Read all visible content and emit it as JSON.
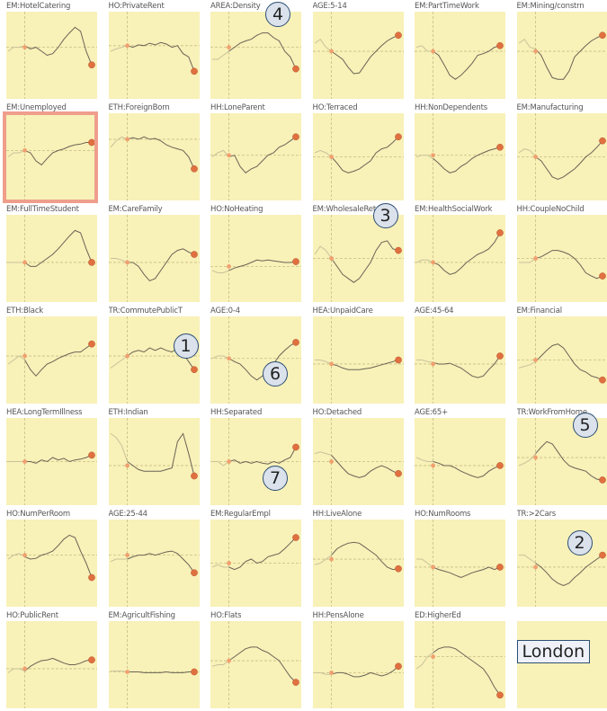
{
  "colors": {
    "plot_bg": "#f8f1b8",
    "line": "#6b6355",
    "faded_line": "#c9c29a",
    "marker": "#e07040",
    "guide": "#c7bd84",
    "highlight": "#ef9e8c",
    "badge_border": "#2d4e73"
  },
  "empty_cell_label": "London",
  "chart_data": {
    "type": "line",
    "layout": "small-multiples",
    "xlabel": "",
    "ylabel": "",
    "grid": "dashed crosshair at marked point",
    "highlighted_panel": "EM:Unemployed",
    "annotations": [
      {
        "panel": "TR:CommutePublicT",
        "label": "1"
      },
      {
        "panel": "TR:>2Cars",
        "label": "2"
      },
      {
        "panel": "EM:WholesaleRetail",
        "label": "3"
      },
      {
        "panel": "AREA:Density",
        "label": "4"
      },
      {
        "panel": "TR:WorkFromHome",
        "label": "5"
      },
      {
        "panel": "AGE:0-4",
        "label": "6"
      },
      {
        "panel": "HH:Separated",
        "label": "7"
      }
    ],
    "panels": [
      {
        "title": "EM:HotelCatering",
        "values": [
          0.55,
          0.6,
          0.6,
          0.62,
          0.58,
          0.6,
          0.55,
          0.5,
          0.52,
          0.6,
          0.7,
          0.78,
          0.85,
          0.8,
          0.55,
          0.38
        ],
        "marker": 0.6
      },
      {
        "title": "HO:PrivateRent",
        "values": [
          0.55,
          0.58,
          0.6,
          0.62,
          0.6,
          0.63,
          0.62,
          0.65,
          0.63,
          0.66,
          0.64,
          0.6,
          0.62,
          0.52,
          0.48,
          0.3
        ],
        "marker": 0.62
      },
      {
        "title": "AREA:Density",
        "values": [
          0.45,
          0.45,
          0.5,
          0.55,
          0.6,
          0.65,
          0.68,
          0.7,
          0.75,
          0.78,
          0.78,
          0.72,
          0.68,
          0.55,
          0.48,
          0.33
        ],
        "marker": 0.6
      },
      {
        "title": "AGE:5-14",
        "values": [
          0.65,
          0.7,
          0.6,
          0.55,
          0.5,
          0.45,
          0.35,
          0.27,
          0.28,
          0.38,
          0.48,
          0.55,
          0.62,
          0.68,
          0.72,
          0.75
        ],
        "marker": 0.55
      },
      {
        "title": "EM:PartTimeWork",
        "values": [
          0.6,
          0.62,
          0.55,
          0.55,
          0.5,
          0.38,
          0.25,
          0.2,
          0.25,
          0.32,
          0.4,
          0.5,
          0.52,
          0.55,
          0.6,
          0.62
        ],
        "marker": 0.55
      },
      {
        "title": "EM:Mining/constrn",
        "values": [
          0.65,
          0.7,
          0.6,
          0.58,
          0.5,
          0.35,
          0.22,
          0.2,
          0.2,
          0.3,
          0.48,
          0.55,
          0.62,
          0.68,
          0.72,
          0.75
        ],
        "marker": 0.55
      },
      {
        "title": "EM:Unemployed",
        "values": [
          0.5,
          0.55,
          0.55,
          0.58,
          0.55,
          0.45,
          0.4,
          0.48,
          0.55,
          0.58,
          0.6,
          0.63,
          0.65,
          0.66,
          0.68,
          0.68
        ],
        "marker": 0.58
      },
      {
        "title": "ETH:ForeignBorn",
        "values": [
          0.62,
          0.7,
          0.75,
          0.72,
          0.74,
          0.72,
          0.75,
          0.72,
          0.73,
          0.7,
          0.65,
          0.62,
          0.6,
          0.58,
          0.5,
          0.35
        ],
        "marker": 0.72
      },
      {
        "title": "HH:LoneParent",
        "values": [
          0.5,
          0.55,
          0.58,
          0.5,
          0.52,
          0.38,
          0.3,
          0.35,
          0.38,
          0.45,
          0.52,
          0.55,
          0.62,
          0.65,
          0.7,
          0.75
        ],
        "marker": 0.52
      },
      {
        "title": "HO:Terraced",
        "values": [
          0.55,
          0.58,
          0.55,
          0.5,
          0.42,
          0.33,
          0.3,
          0.32,
          0.35,
          0.4,
          0.45,
          0.55,
          0.6,
          0.62,
          0.68,
          0.75
        ],
        "marker": 0.5
      },
      {
        "title": "HH:NonDependents",
        "values": [
          0.5,
          0.52,
          0.52,
          0.48,
          0.42,
          0.35,
          0.3,
          0.32,
          0.38,
          0.42,
          0.48,
          0.52,
          0.55,
          0.58,
          0.6,
          0.62
        ],
        "marker": 0.52
      },
      {
        "title": "EM:Manufacturing",
        "values": [
          0.55,
          0.6,
          0.58,
          0.5,
          0.45,
          0.35,
          0.25,
          0.22,
          0.25,
          0.3,
          0.35,
          0.42,
          0.5,
          0.55,
          0.62,
          0.7
        ],
        "marker": 0.5
      },
      {
        "title": "EM:FullTimeStudent",
        "values": [
          0.45,
          0.45,
          0.45,
          0.45,
          0.4,
          0.4,
          0.45,
          0.5,
          0.55,
          0.62,
          0.7,
          0.78,
          0.85,
          0.82,
          0.62,
          0.45
        ],
        "marker": 0.45
      },
      {
        "title": "EM:CareFamily",
        "values": [
          0.5,
          0.5,
          0.48,
          0.45,
          0.45,
          0.4,
          0.3,
          0.22,
          0.25,
          0.35,
          0.45,
          0.55,
          0.6,
          0.62,
          0.58,
          0.55
        ],
        "marker": 0.45
      },
      {
        "title": "HO:NoHeating",
        "values": [
          0.35,
          0.32,
          0.32,
          0.35,
          0.38,
          0.4,
          0.42,
          0.45,
          0.48,
          0.47,
          0.48,
          0.47,
          0.46,
          0.45,
          0.45,
          0.46
        ],
        "marker": 0.4
      },
      {
        "title": "EM:WholesaleRetail",
        "values": [
          0.55,
          0.65,
          0.6,
          0.5,
          0.4,
          0.3,
          0.25,
          0.2,
          0.25,
          0.35,
          0.45,
          0.6,
          0.7,
          0.72,
          0.62,
          0.6
        ],
        "marker": 0.5
      },
      {
        "title": "EM:HealthSocialWork",
        "values": [
          0.45,
          0.48,
          0.48,
          0.45,
          0.42,
          0.35,
          0.3,
          0.32,
          0.38,
          0.45,
          0.5,
          0.55,
          0.58,
          0.62,
          0.7,
          0.82
        ],
        "marker": 0.45
      },
      {
        "title": "HH:CoupleNoChild",
        "values": [
          0.45,
          0.45,
          0.45,
          0.5,
          0.52,
          0.56,
          0.6,
          0.6,
          0.58,
          0.55,
          0.5,
          0.42,
          0.32,
          0.28,
          0.25,
          0.28
        ],
        "marker": 0.5
      },
      {
        "title": "ETH:Black",
        "values": [
          0.45,
          0.5,
          0.55,
          0.5,
          0.38,
          0.3,
          0.38,
          0.45,
          0.48,
          0.52,
          0.55,
          0.58,
          0.6,
          0.6,
          0.65,
          0.7
        ],
        "marker": 0.55
      },
      {
        "title": "TR:CommutePublicT",
        "values": [
          0.4,
          0.45,
          0.5,
          0.55,
          0.6,
          0.62,
          0.6,
          0.65,
          0.62,
          0.65,
          0.62,
          0.6,
          0.65,
          0.58,
          0.48,
          0.38
        ],
        "marker": 0.55
      },
      {
        "title": "AGE:0-4",
        "values": [
          0.52,
          0.55,
          0.55,
          0.52,
          0.48,
          0.45,
          0.38,
          0.3,
          0.25,
          0.3,
          0.38,
          0.45,
          0.55,
          0.62,
          0.68,
          0.72
        ],
        "marker": 0.52
      },
      {
        "title": "HEA:UnpaidCare",
        "values": [
          0.5,
          0.5,
          0.48,
          0.45,
          0.43,
          0.4,
          0.38,
          0.38,
          0.38,
          0.39,
          0.4,
          0.42,
          0.44,
          0.46,
          0.48,
          0.5
        ],
        "marker": 0.45
      },
      {
        "title": "AGE:45-64",
        "values": [
          0.5,
          0.5,
          0.48,
          0.47,
          0.45,
          0.45,
          0.46,
          0.43,
          0.4,
          0.35,
          0.3,
          0.28,
          0.3,
          0.38,
          0.45,
          0.55
        ],
        "marker": 0.45
      },
      {
        "title": "EM:Financial",
        "values": [
          0.4,
          0.42,
          0.44,
          0.48,
          0.55,
          0.62,
          0.68,
          0.7,
          0.65,
          0.55,
          0.45,
          0.38,
          0.35,
          0.3,
          0.28,
          0.25
        ],
        "marker": 0.5
      },
      {
        "title": "HEA:LongTermIllness",
        "values": [
          0.5,
          0.5,
          0.5,
          0.5,
          0.5,
          0.48,
          0.52,
          0.5,
          0.55,
          0.52,
          0.54,
          0.5,
          0.52,
          0.53,
          0.55,
          0.58
        ],
        "marker": 0.5
      },
      {
        "title": "ETH:Indian",
        "values": [
          0.85,
          0.8,
          0.7,
          0.5,
          0.45,
          0.4,
          0.38,
          0.38,
          0.38,
          0.38,
          0.4,
          0.42,
          0.75,
          0.85,
          0.6,
          0.32
        ],
        "marker": 0.45
      },
      {
        "title": "HH:Separated",
        "values": [
          0.5,
          0.5,
          0.45,
          0.5,
          0.52,
          0.48,
          0.5,
          0.48,
          0.5,
          0.48,
          0.47,
          0.5,
          0.48,
          0.52,
          0.55,
          0.68
        ],
        "marker": 0.5
      },
      {
        "title": "HO:Detached",
        "values": [
          0.6,
          0.62,
          0.6,
          0.58,
          0.5,
          0.42,
          0.35,
          0.32,
          0.3,
          0.32,
          0.38,
          0.42,
          0.45,
          0.42,
          0.38,
          0.35
        ],
        "marker": 0.5
      },
      {
        "title": "AGE:65+",
        "values": [
          0.55,
          0.52,
          0.5,
          0.5,
          0.48,
          0.45,
          0.45,
          0.42,
          0.38,
          0.35,
          0.32,
          0.3,
          0.32,
          0.38,
          0.42,
          0.45
        ],
        "marker": 0.45
      },
      {
        "title": "TR:WorkFromHome",
        "values": [
          0.45,
          0.48,
          0.52,
          0.6,
          0.68,
          0.75,
          0.72,
          0.62,
          0.52,
          0.45,
          0.42,
          0.4,
          0.38,
          0.32,
          0.28,
          0.27
        ],
        "marker": 0.55
      },
      {
        "title": "HO:NumPerRoom",
        "values": [
          0.55,
          0.6,
          0.62,
          0.58,
          0.55,
          0.56,
          0.6,
          0.62,
          0.65,
          0.72,
          0.8,
          0.85,
          0.82,
          0.65,
          0.5,
          0.32
        ],
        "marker": 0.6
      },
      {
        "title": "AGE:25-44",
        "values": [
          0.52,
          0.55,
          0.55,
          0.55,
          0.58,
          0.6,
          0.6,
          0.62,
          0.6,
          0.62,
          0.64,
          0.65,
          0.62,
          0.55,
          0.48,
          0.38
        ],
        "marker": 0.6
      },
      {
        "title": "EM:RegularEmpl",
        "values": [
          0.45,
          0.48,
          0.45,
          0.45,
          0.42,
          0.45,
          0.52,
          0.55,
          0.5,
          0.52,
          0.58,
          0.6,
          0.62,
          0.68,
          0.75,
          0.82
        ],
        "marker": 0.5
      },
      {
        "title": "HH:LiveAlone",
        "values": [
          0.48,
          0.5,
          0.55,
          0.6,
          0.68,
          0.72,
          0.75,
          0.76,
          0.75,
          0.7,
          0.65,
          0.6,
          0.52,
          0.45,
          0.42,
          0.43
        ],
        "marker": 0.55
      },
      {
        "title": "HO:NumRooms",
        "values": [
          0.55,
          0.55,
          0.5,
          0.45,
          0.42,
          0.4,
          0.38,
          0.35,
          0.32,
          0.35,
          0.38,
          0.4,
          0.42,
          0.45,
          0.42,
          0.45
        ],
        "marker": 0.45
      },
      {
        "title": "TR:>2Cars",
        "values": [
          0.6,
          0.6,
          0.55,
          0.5,
          0.45,
          0.38,
          0.3,
          0.25,
          0.22,
          0.25,
          0.32,
          0.38,
          0.45,
          0.5,
          0.55,
          0.6
        ],
        "marker": 0.45
      },
      {
        "title": "HO:PublicRent",
        "values": [
          0.4,
          0.45,
          0.45,
          0.42,
          0.48,
          0.52,
          0.55,
          0.56,
          0.58,
          0.55,
          0.52,
          0.5,
          0.5,
          0.52,
          0.55,
          0.56
        ],
        "marker": 0.45
      },
      {
        "title": "EM:AgricultFishing",
        "values": [
          0.42,
          0.42,
          0.42,
          0.41,
          0.41,
          0.41,
          0.4,
          0.4,
          0.4,
          0.4,
          0.41,
          0.4,
          0.4,
          0.4,
          0.41,
          0.41
        ],
        "marker": 0.41
      },
      {
        "title": "HO:Flats",
        "values": [
          0.48,
          0.5,
          0.5,
          0.55,
          0.6,
          0.65,
          0.7,
          0.72,
          0.72,
          0.68,
          0.65,
          0.6,
          0.55,
          0.45,
          0.35,
          0.28
        ],
        "marker": 0.55
      },
      {
        "title": "HH:PensAlone",
        "values": [
          0.4,
          0.4,
          0.38,
          0.38,
          0.4,
          0.4,
          0.38,
          0.35,
          0.35,
          0.37,
          0.4,
          0.38,
          0.36,
          0.38,
          0.42,
          0.48
        ],
        "marker": 0.4
      },
      {
        "title": "ED:HigherEd",
        "values": [
          0.45,
          0.5,
          0.6,
          0.65,
          0.7,
          0.72,
          0.72,
          0.7,
          0.65,
          0.6,
          0.55,
          0.5,
          0.45,
          0.35,
          0.22,
          0.12
        ],
        "marker": 0.6
      }
    ]
  }
}
